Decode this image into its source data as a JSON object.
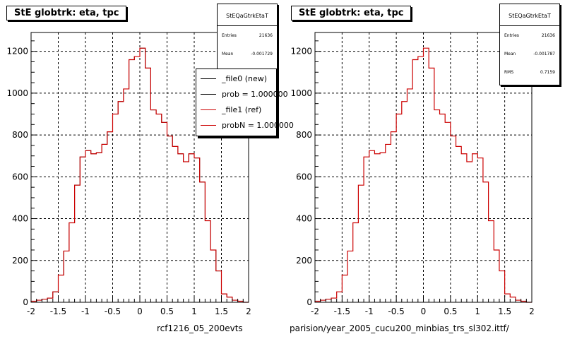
{
  "colors": {
    "new": "#000000",
    "ref": "#cc0000",
    "grid": "#000000",
    "frame": "#000000"
  },
  "footer": {
    "left_file": "rcf1216_05_200evts",
    "right_path": "parision/year_2005_cucu200_minbias_trs_sl302.ittf/"
  },
  "chart_data": [
    {
      "type": "bar",
      "title": "StE globtrk: eta, tpc",
      "xlim": [
        -2,
        2
      ],
      "ylim": [
        0,
        1290
      ],
      "xticks": [
        "-2",
        "-1.5",
        "-1",
        "-0.5",
        "0",
        "0.5",
        "1",
        "1.5",
        "2"
      ],
      "yticks": [
        "0",
        "200",
        "400",
        "600",
        "800",
        "1000",
        "1200"
      ],
      "grid": true,
      "legend_position": "top-right",
      "stats": {
        "name": "StEQaGtrkEtaT",
        "rows": [
          {
            "label": "Entries",
            "value": "21636"
          },
          {
            "label": "Mean",
            "value": "-0.001729"
          }
        ]
      },
      "legend": [
        {
          "label": "_file0 (new)",
          "color": "#000000"
        },
        {
          "label": "prob = 1.000000",
          "color": "#000000"
        },
        {
          "label": "_file1 (ref)",
          "color": "#cc0000"
        },
        {
          "label": "probN = 1.000000",
          "color": "#cc0000"
        }
      ],
      "bin_width": 0.1,
      "x": [
        -2.0,
        -1.9,
        -1.8,
        -1.7,
        -1.6,
        -1.5,
        -1.4,
        -1.3,
        -1.2,
        -1.1,
        -1.0,
        -0.9,
        -0.8,
        -0.7,
        -0.6,
        -0.5,
        -0.4,
        -0.3,
        -0.2,
        -0.1,
        0.0,
        0.1,
        0.2,
        0.3,
        0.4,
        0.5,
        0.6,
        0.7,
        0.8,
        0.9,
        1.0,
        1.1,
        1.2,
        1.3,
        1.4,
        1.5,
        1.6,
        1.7,
        1.8,
        1.9
      ],
      "series": [
        {
          "name": "_file0 (new)",
          "values": [
            5,
            10,
            15,
            20,
            50,
            130,
            245,
            380,
            560,
            695,
            725,
            710,
            715,
            755,
            815,
            900,
            960,
            1020,
            1160,
            1175,
            1215,
            1120,
            920,
            900,
            860,
            795,
            745,
            710,
            672,
            710,
            690,
            575,
            390,
            250,
            150,
            40,
            25,
            10,
            5,
            0
          ]
        },
        {
          "name": "_file1 (ref)",
          "values": [
            5,
            10,
            15,
            20,
            50,
            130,
            245,
            380,
            560,
            695,
            725,
            710,
            715,
            755,
            815,
            900,
            960,
            1020,
            1160,
            1175,
            1215,
            1120,
            920,
            900,
            860,
            795,
            745,
            710,
            672,
            710,
            690,
            575,
            390,
            250,
            150,
            40,
            25,
            10,
            5,
            0
          ]
        }
      ]
    },
    {
      "type": "bar",
      "title": "StE globtrk: eta, tpc",
      "xlim": [
        -2,
        2
      ],
      "ylim": [
        0,
        1290
      ],
      "xticks": [
        "-2",
        "-1.5",
        "-1",
        "-0.5",
        "0",
        "0.5",
        "1",
        "1.5",
        "2"
      ],
      "yticks": [
        "0",
        "200",
        "400",
        "600",
        "800",
        "1000",
        "1200"
      ],
      "grid": true,
      "stats": {
        "name": "StEQaGtrkEtaT",
        "rows": [
          {
            "label": "Entries",
            "value": "21636"
          },
          {
            "label": "Mean",
            "value": "-0.001787"
          },
          {
            "label": "RMS",
            "value": "0.7159"
          }
        ]
      },
      "bin_width": 0.1,
      "x": [
        -2.0,
        -1.9,
        -1.8,
        -1.7,
        -1.6,
        -1.5,
        -1.4,
        -1.3,
        -1.2,
        -1.1,
        -1.0,
        -0.9,
        -0.8,
        -0.7,
        -0.6,
        -0.5,
        -0.4,
        -0.3,
        -0.2,
        -0.1,
        0.0,
        0.1,
        0.2,
        0.3,
        0.4,
        0.5,
        0.6,
        0.7,
        0.8,
        0.9,
        1.0,
        1.1,
        1.2,
        1.3,
        1.4,
        1.5,
        1.6,
        1.7,
        1.8,
        1.9
      ],
      "series": [
        {
          "name": "_file1 (ref)",
          "values": [
            5,
            10,
            15,
            20,
            50,
            130,
            245,
            380,
            560,
            695,
            725,
            710,
            715,
            755,
            815,
            900,
            960,
            1020,
            1160,
            1175,
            1215,
            1120,
            920,
            900,
            860,
            795,
            745,
            710,
            672,
            710,
            690,
            575,
            390,
            250,
            150,
            40,
            25,
            10,
            5,
            0
          ]
        }
      ]
    }
  ]
}
